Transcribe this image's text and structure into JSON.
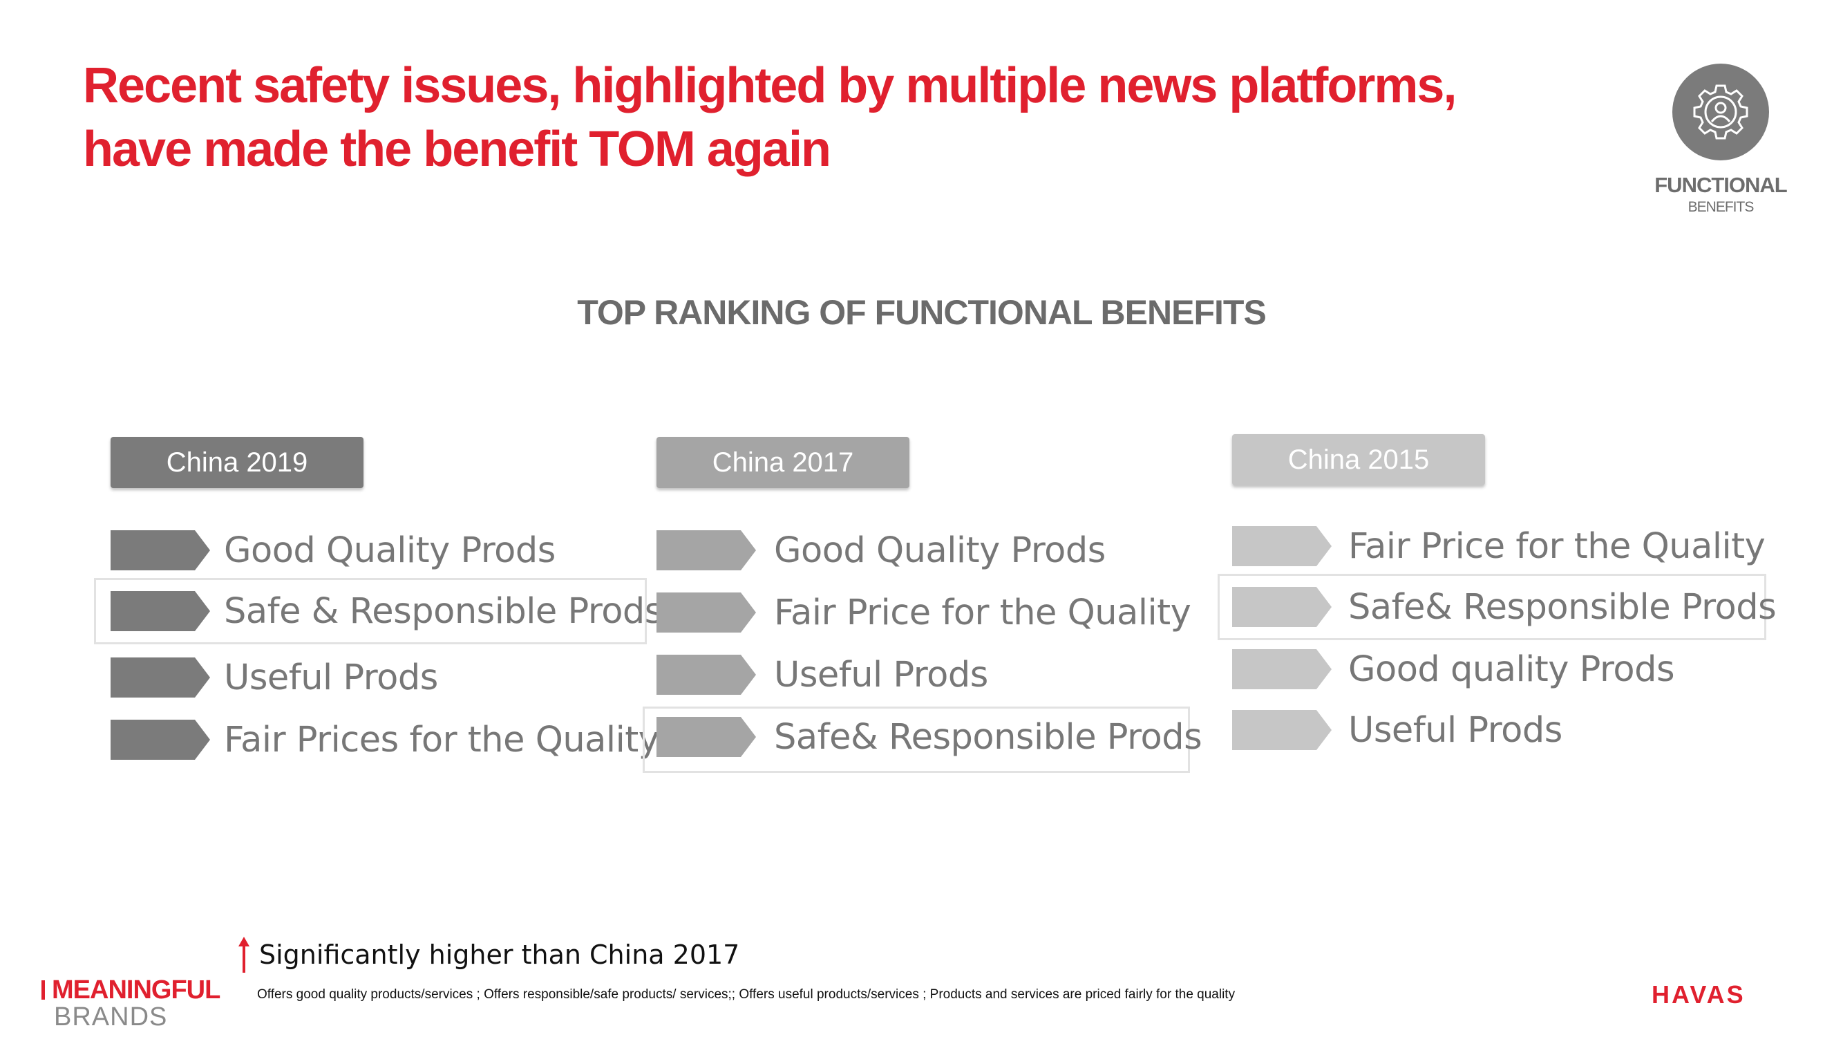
{
  "title": {
    "line1": "Recent safety issues, highlighted by multiple news platforms,",
    "line2": "have made the benefit TOM again"
  },
  "badge": {
    "icon": "gear-person-icon",
    "title": "FUNCTIONAL",
    "subtitle": "BENEFITS"
  },
  "section_heading": "TOP RANKING OF FUNCTIONAL BENEFITS",
  "colors": {
    "brand_red": "#e0202e",
    "china2019": "#7b7b7b",
    "china2017": "#a5a5a5",
    "china2015": "#c6c6c6"
  },
  "columns": [
    {
      "header": "China 2019",
      "items": [
        {
          "label": "Good Quality Prods"
        },
        {
          "label": "Safe & Responsible Prods",
          "highlighted": true,
          "significant": true
        },
        {
          "label": "Useful Prods"
        },
        {
          "label": "Fair Prices for the Quality"
        }
      ]
    },
    {
      "header": "China 2017",
      "items": [
        {
          "label": "Good Quality Prods"
        },
        {
          "label": "Fair Price for the Quality"
        },
        {
          "label": "Useful Prods"
        },
        {
          "label": "Safe& Responsible Prods",
          "highlighted": true
        }
      ]
    },
    {
      "header": "China 2015",
      "items": [
        {
          "label": "Fair Price for the Quality"
        },
        {
          "label": "Safe& Responsible Prods",
          "highlighted": true
        },
        {
          "label": "Good quality Prods"
        },
        {
          "label": "Useful Prods"
        }
      ]
    }
  ],
  "legend": {
    "icon": "arrow-up-icon",
    "text": "Significantly higher than China 2017"
  },
  "footnote": "Offers good quality products/services ; Offers responsible/safe products/ services;; Offers useful products/services ; Products and services are priced fairly for the quality",
  "logos": {
    "meaningful_line1": "MEANINGFUL",
    "meaningful_line2": "BRANDS",
    "havas": "HAVAS"
  }
}
